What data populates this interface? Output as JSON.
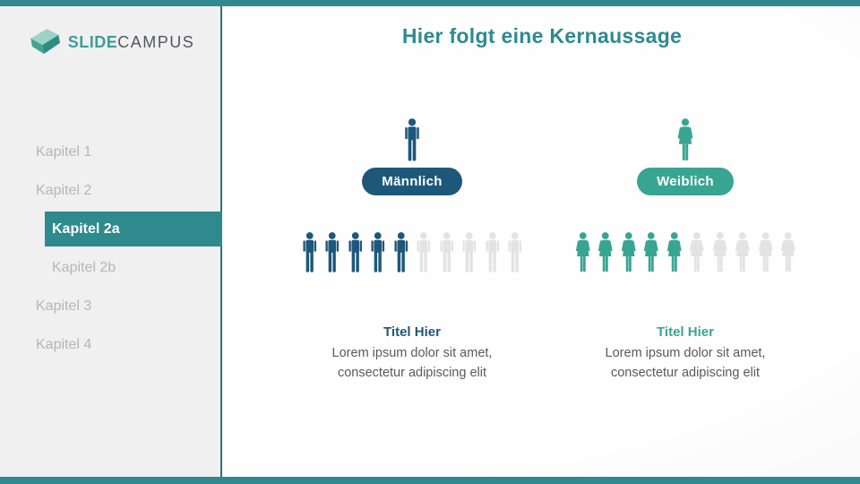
{
  "logo": {
    "icon": "slidecampus-logo-icon",
    "part1": "SLIDE",
    "part2": "CAMPUS"
  },
  "sidebar": {
    "items": [
      {
        "label": "Kapitel 1",
        "level": 1,
        "active": false
      },
      {
        "label": "Kapitel 2",
        "level": 1,
        "active": false
      },
      {
        "label": "Kapitel 2a",
        "level": 2,
        "active": true
      },
      {
        "label": "Kapitel 2b",
        "level": 2,
        "active": false
      },
      {
        "label": "Kapitel 3",
        "level": 1,
        "active": false
      },
      {
        "label": "Kapitel 4",
        "level": 1,
        "active": false
      }
    ]
  },
  "header": {
    "title": "Hier folgt eine Kernaussage"
  },
  "chart_data": {
    "type": "pictograph",
    "title": "Hier folgt eine Kernaussage",
    "empty_color": "#E3E3E4",
    "groups": [
      {
        "label": "Männlich",
        "icon": "male-person-icon",
        "filled": 5,
        "total": 10,
        "color": "#1D587A",
        "subtitle": "Titel Hier",
        "desc_line1": "Lorem ipsum dolor sit amet,",
        "desc_line2": "consectetur adipiscing elit"
      },
      {
        "label": "Weiblich",
        "icon": "female-person-icon",
        "filled": 5,
        "total": 10,
        "color": "#38A592",
        "subtitle": "Titel Hier",
        "desc_line1": "Lorem ipsum dolor sit amet,",
        "desc_line2": "consectetur adipiscing elit"
      }
    ]
  },
  "colors": {
    "accent_teal": "#30898F",
    "male_blue": "#1D587A",
    "female_teal": "#38A592",
    "empty_gray": "#E3E3E4",
    "nav_inactive": "#B5B5B5",
    "body_text": "#5A5A5A"
  }
}
